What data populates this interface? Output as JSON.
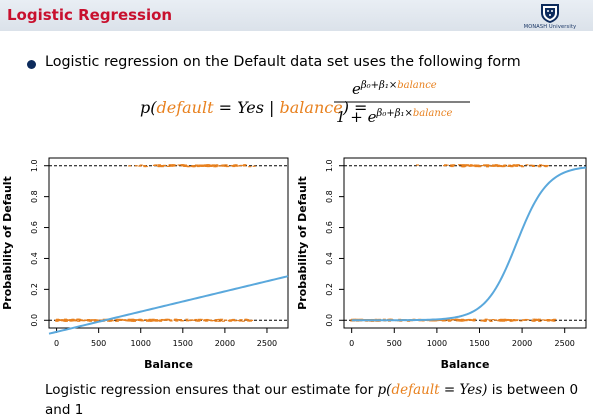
{
  "header": {
    "title": "Logistic Regression",
    "logo_text": "MONASH University"
  },
  "bullet": {
    "text": "Logistic regression on the Default data set uses the following form"
  },
  "formula": {
    "lhs_p": "p(",
    "lhs_default": "default",
    "lhs_eq": " = Yes | ",
    "lhs_balance": "balance",
    "lhs_close": ") =",
    "num_e": "e",
    "num_exp": "β₀+β₁×",
    "num_balance": "balance",
    "den_prefix": "1 + e",
    "den_exp": "β₀+β₁×",
    "den_balance": "balance"
  },
  "bottom": {
    "line_before": "Logistic regression ensures that our estimate for ",
    "p_open": "p(",
    "default": "default",
    "eq_yes": " = Yes",
    "close": ")",
    "line_after": " is between 0 and 1"
  },
  "colors": {
    "title": "#c8102e",
    "accent": "#e8811f",
    "curve": "#5aa8dc",
    "bullet": "#0d2b5c"
  },
  "chart_data": [
    {
      "type": "scatter",
      "title": "",
      "xlabel": "Balance",
      "ylabel": "Probability of Default",
      "x_ticks": [
        "0",
        "500",
        "1000",
        "1500",
        "2000",
        "2500"
      ],
      "y_ticks": [
        "0.0",
        "0.2",
        "0.4",
        "0.6",
        "0.8",
        "1.0"
      ],
      "xlim": [
        -90,
        2750
      ],
      "ylim": [
        -0.05,
        1.05
      ],
      "reference_lines": [
        0,
        1
      ],
      "fit": {
        "kind": "linear",
        "intercept": -0.075,
        "slope": 0.000131,
        "x_range": [
          -90,
          2750
        ]
      },
      "points": {
        "y0_x_range": [
          0,
          2400
        ],
        "y1_x_range": [
          650,
          2650
        ]
      }
    },
    {
      "type": "scatter",
      "title": "",
      "xlabel": "Balance",
      "ylabel": "Probability of Default",
      "x_ticks": [
        "0",
        "500",
        "1000",
        "1500",
        "2000",
        "2500"
      ],
      "y_ticks": [
        "0.0",
        "0.2",
        "0.4",
        "0.6",
        "0.8",
        "1.0"
      ],
      "xlim": [
        -90,
        2750
      ],
      "ylim": [
        -0.05,
        1.05
      ],
      "reference_lines": [
        0,
        1
      ],
      "fit": {
        "kind": "logistic",
        "beta0": -10.65,
        "beta1": 0.0055,
        "x_range": [
          0,
          2750
        ]
      },
      "points": {
        "y0_x_range": [
          0,
          2400
        ],
        "y1_x_range": [
          650,
          2650
        ]
      }
    }
  ]
}
